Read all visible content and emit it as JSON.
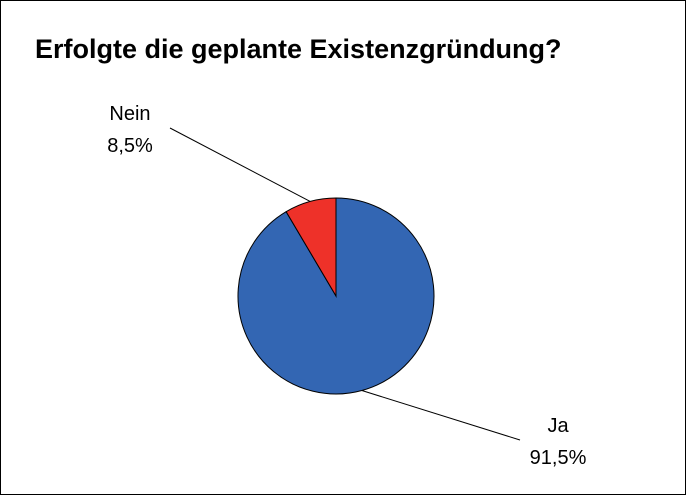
{
  "chart_data": {
    "type": "pie",
    "title": "Erfolgte die geplante Existenzgründung?",
    "categories": [
      "Ja",
      "Nein"
    ],
    "values": [
      91.5,
      8.5
    ],
    "value_labels": [
      "91,5%",
      "8,5%"
    ],
    "colors": [
      "#3366b3",
      "#ee3129"
    ]
  }
}
